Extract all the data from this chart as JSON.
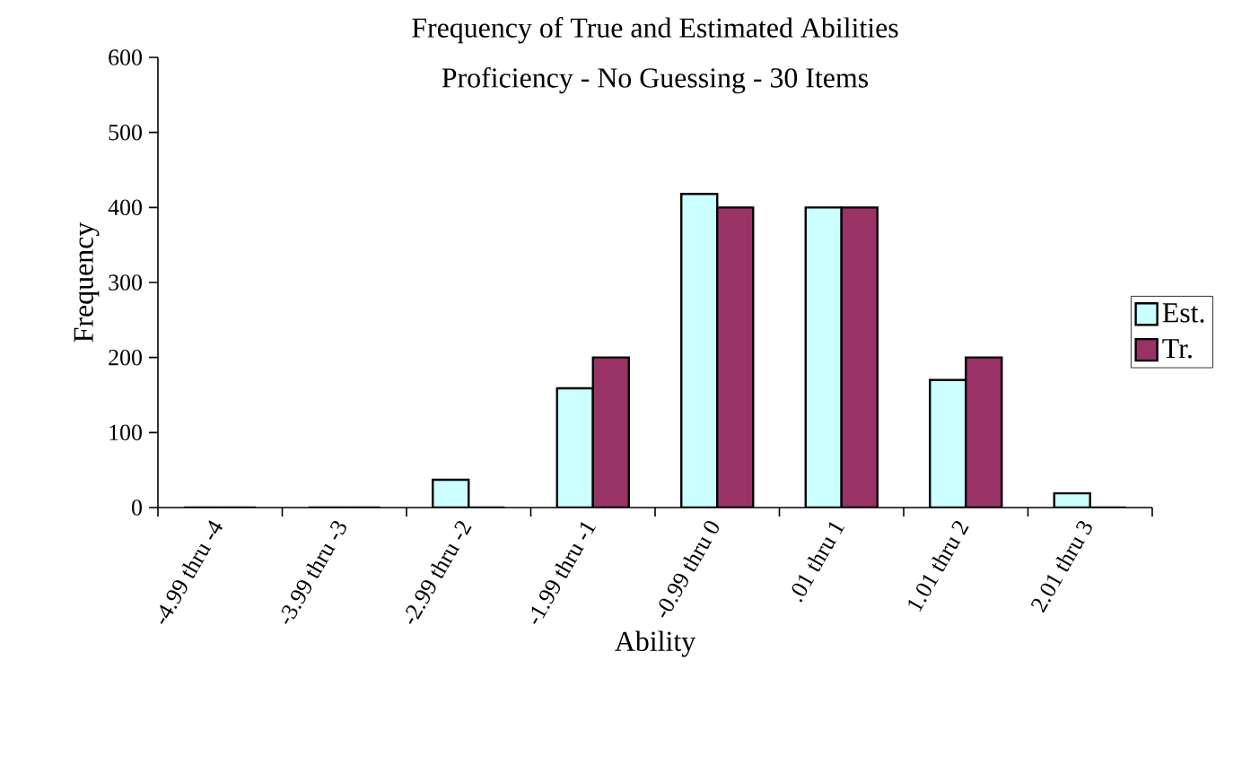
{
  "chart_data": {
    "type": "bar",
    "title": "Frequency of True and Estimated Abilities",
    "subtitle": "Proficiency - No Guessing - 30 Items",
    "xlabel": "Ability",
    "ylabel": "Frequency",
    "categories": [
      "-4.99 thru -4",
      "-3.99 thru -3",
      "-2.99 thru -2",
      "-1.99 thru -1",
      "-0.99 thru 0",
      ".01 thru 1",
      "1.01 thru 2",
      "2.01 thru 3"
    ],
    "series": [
      {
        "name": "Est.",
        "color": "#ccffff",
        "values": [
          0,
          0,
          37,
          159,
          418,
          400,
          170,
          19
        ]
      },
      {
        "name": "Tr.",
        "color": "#993366",
        "values": [
          0,
          0,
          0,
          200,
          400,
          400,
          200,
          0
        ]
      }
    ],
    "ylim": [
      0,
      600
    ],
    "yticks": [
      0,
      100,
      200,
      300,
      400,
      500,
      600
    ],
    "legend": "right"
  }
}
